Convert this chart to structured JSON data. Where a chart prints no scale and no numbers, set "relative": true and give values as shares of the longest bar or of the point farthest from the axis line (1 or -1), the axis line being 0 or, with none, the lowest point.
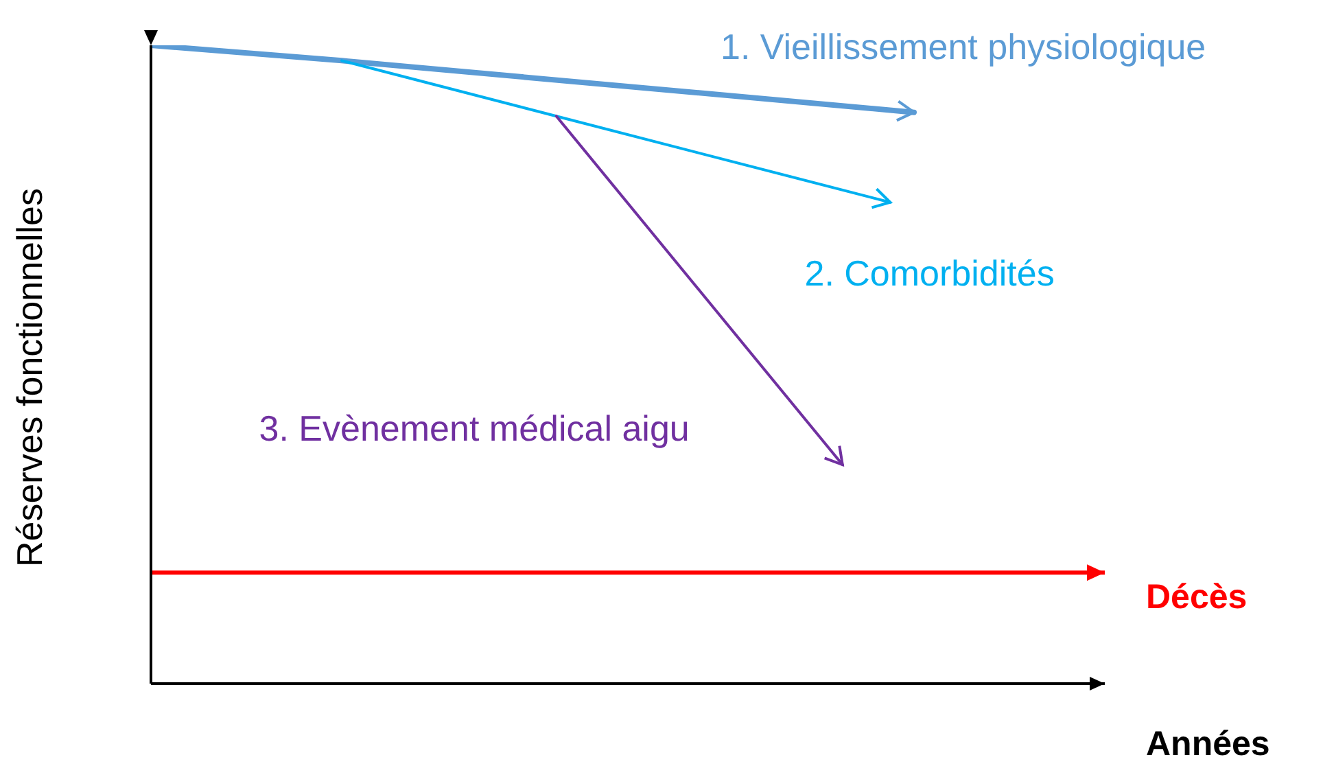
{
  "chart_data": {
    "type": "line",
    "relative": true,
    "ylabel": "Réserves fonctionnelles",
    "xlabel": "Années",
    "marker": "none",
    "categories": [
      null,
      null,
      null,
      null,
      null,
      null,
      null,
      null,
      null,
      null,
      null,
      null,
      null,
      null,
      null,
      null,
      null,
      null,
      null,
      null,
      null,
      null,
      null,
      null,
      null,
      null,
      null,
      null,
      null,
      null,
      null,
      null,
      null,
      null,
      null,
      null,
      null,
      null,
      null,
      null,
      null
    ],
    "series": [
      {
        "name": "1. Vieillissement physiologique",
        "color": "#5b9bd5",
        "values": [
          1,
          null,
          null,
          null,
          null,
          null,
          null,
          null,
          0.976,
          null,
          null,
          null,
          null,
          null,
          null,
          null,
          null,
          null,
          null,
          null,
          null,
          null,
          null,
          null,
          null,
          null,
          null,
          null,
          null,
          null,
          null,
          null,
          0.895,
          null,
          null,
          null,
          null,
          null,
          null,
          null,
          null
        ]
      },
      {
        "name": "2. Comorbidités",
        "color": "#00b0f0",
        "values": [
          null,
          null,
          null,
          null,
          null,
          null,
          null,
          null,
          0.976,
          null,
          null,
          null,
          null,
          null,
          null,
          null,
          null,
          0.889,
          null,
          null,
          null,
          null,
          null,
          null,
          null,
          null,
          null,
          null,
          null,
          null,
          null,
          0.754,
          null,
          null,
          null,
          null,
          null,
          null,
          null,
          null,
          null
        ]
      },
      {
        "name": "3. Evènement médical aigu",
        "color": "#7030a0",
        "values": [
          null,
          null,
          null,
          null,
          null,
          null,
          null,
          null,
          null,
          null,
          null,
          null,
          null,
          null,
          null,
          null,
          null,
          0.889,
          null,
          null,
          null,
          null,
          null,
          null,
          null,
          null,
          null,
          null,
          null,
          0.343,
          null,
          null,
          null,
          null,
          null,
          null,
          null,
          null,
          null,
          null,
          null
        ]
      },
      {
        "name": "Décès",
        "color": "#ff0000",
        "values": [
          0.174,
          null,
          null,
          null,
          null,
          null,
          null,
          null,
          null,
          null,
          null,
          null,
          null,
          null,
          null,
          null,
          null,
          null,
          null,
          null,
          null,
          null,
          null,
          null,
          null,
          null,
          null,
          null,
          null,
          null,
          null,
          null,
          null,
          null,
          null,
          null,
          null,
          null,
          null,
          null,
          0.174
        ]
      }
    ]
  }
}
